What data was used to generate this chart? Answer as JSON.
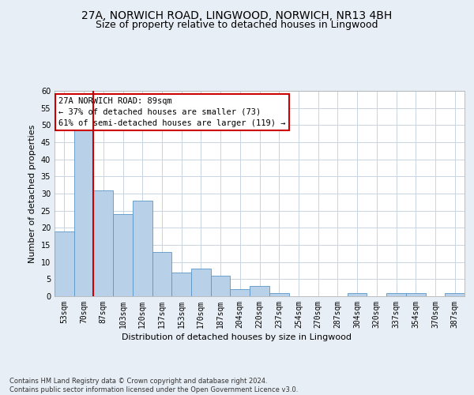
{
  "title1": "27A, NORWICH ROAD, LINGWOOD, NORWICH, NR13 4BH",
  "title2": "Size of property relative to detached houses in Lingwood",
  "xlabel": "Distribution of detached houses by size in Lingwood",
  "ylabel": "Number of detached properties",
  "footnote": "Contains HM Land Registry data © Crown copyright and database right 2024.\nContains public sector information licensed under the Open Government Licence v3.0.",
  "categories": [
    "53sqm",
    "70sqm",
    "87sqm",
    "103sqm",
    "120sqm",
    "137sqm",
    "153sqm",
    "170sqm",
    "187sqm",
    "204sqm",
    "220sqm",
    "237sqm",
    "254sqm",
    "270sqm",
    "287sqm",
    "304sqm",
    "320sqm",
    "337sqm",
    "354sqm",
    "370sqm",
    "387sqm"
  ],
  "values": [
    19,
    50,
    31,
    24,
    28,
    13,
    7,
    8,
    6,
    2,
    3,
    1,
    0,
    0,
    0,
    1,
    0,
    1,
    1,
    0,
    1
  ],
  "bar_color": "#b8d0e8",
  "bar_edge_color": "#5a96c8",
  "vline_color": "#cc0000",
  "annotation_text": "27A NORWICH ROAD: 89sqm\n← 37% of detached houses are smaller (73)\n61% of semi-detached houses are larger (119) →",
  "annotation_box_color": "#ffffff",
  "annotation_box_edge_color": "#cc0000",
  "ylim": [
    0,
    60
  ],
  "yticks": [
    0,
    5,
    10,
    15,
    20,
    25,
    30,
    35,
    40,
    45,
    50,
    55,
    60
  ],
  "bg_color": "#e8eef5",
  "plot_bg_color": "#ffffff",
  "grid_color": "#c8d4e0",
  "title_fontsize": 10,
  "subtitle_fontsize": 9,
  "tick_fontsize": 7,
  "ylabel_fontsize": 8,
  "xlabel_fontsize": 8,
  "annotation_fontsize": 7.5,
  "footnote_fontsize": 6
}
